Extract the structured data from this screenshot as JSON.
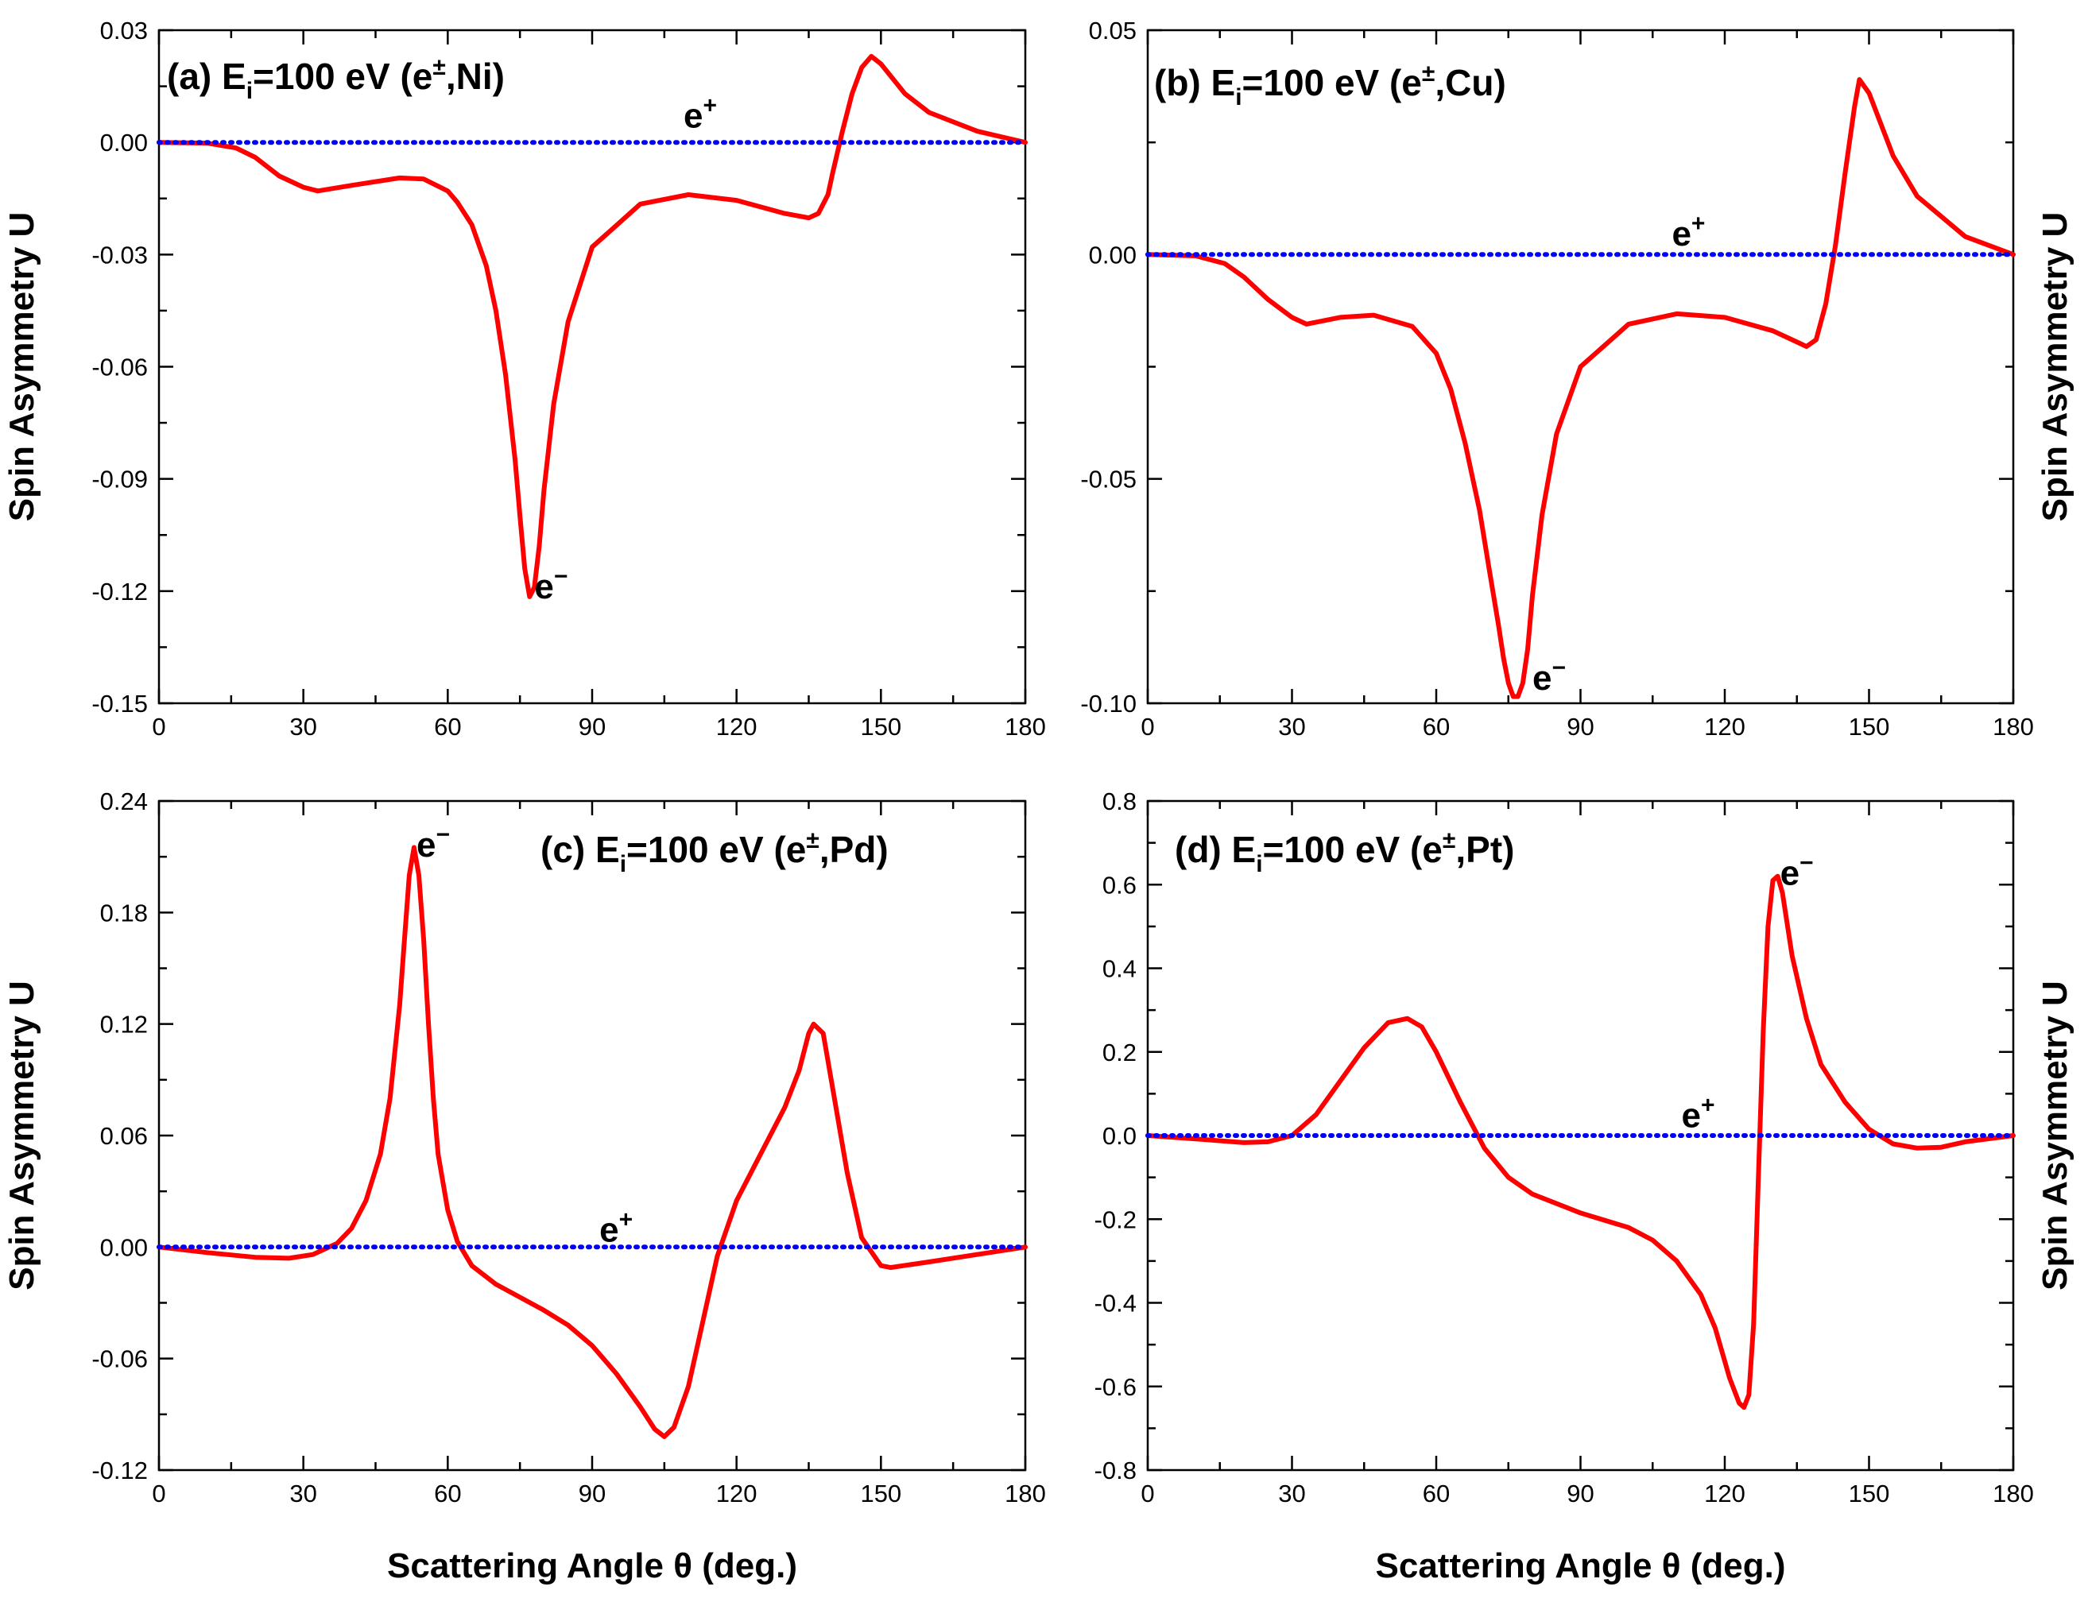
{
  "chart_data": [
    {
      "type": "line",
      "id": "a",
      "title_prefix": "(a) E",
      "title_sub": "i",
      "title_mid": "=100 eV (e",
      "title_sup": "±",
      "title_suffix": ",Ni)",
      "xlabel": "Scattering Angle θ (deg.)",
      "ylabel": "Spin Asymmetry U",
      "xlim": [
        0,
        180
      ],
      "ylim": [
        -0.15,
        0.03
      ],
      "xticks": [
        0,
        30,
        60,
        90,
        120,
        150,
        180
      ],
      "xtick_labels": [
        "0",
        "30",
        "60",
        "90",
        "120",
        "150",
        "180"
      ],
      "yticks": [
        -0.15,
        -0.12,
        -0.09,
        -0.06,
        -0.03,
        0.0,
        0.03
      ],
      "ytick_labels": [
        "-0.15",
        "-0.12",
        "-0.09",
        "-0.06",
        "-0.03",
        "0.00",
        "0.03"
      ],
      "series": [
        {
          "name": "e−",
          "label_base": "e",
          "label_sup": "−",
          "label_at": [
            78,
            -0.122
          ],
          "color": "#ff0000",
          "x": [
            0,
            10,
            16,
            20,
            25,
            30,
            33,
            40,
            50,
            55,
            60,
            62,
            65,
            68,
            70,
            72,
            74,
            75,
            76,
            77,
            78,
            79,
            80,
            82,
            85,
            90,
            100,
            110,
            120,
            130,
            135,
            137,
            139,
            140,
            142,
            144,
            146,
            148,
            150,
            155,
            160,
            170,
            180
          ],
          "y": [
            0,
            -0.0002,
            -0.0015,
            -0.004,
            -0.009,
            -0.012,
            -0.013,
            -0.0115,
            -0.0095,
            -0.0098,
            -0.013,
            -0.016,
            -0.022,
            -0.033,
            -0.045,
            -0.062,
            -0.085,
            -0.1,
            -0.114,
            -0.1215,
            -0.119,
            -0.108,
            -0.093,
            -0.07,
            -0.048,
            -0.028,
            -0.0165,
            -0.014,
            -0.0155,
            -0.019,
            -0.0202,
            -0.019,
            -0.014,
            -0.008,
            0.003,
            0.013,
            0.02,
            0.023,
            0.021,
            0.013,
            0.008,
            0.003,
            0.0
          ]
        },
        {
          "name": "e+",
          "label_base": "e",
          "label_sup": "+",
          "label_at": [
            109,
            0.004
          ],
          "color": "#0000ff",
          "x": [
            0,
            180
          ],
          "y": [
            0,
            0
          ]
        }
      ]
    },
    {
      "type": "line",
      "id": "b",
      "title_prefix": "(b) E",
      "title_sub": "i",
      "title_mid": "=100 eV (e",
      "title_sup": "±",
      "title_suffix": ",Cu)",
      "xlabel": "Scattering Angle θ (deg.)",
      "ylabel": "Spin Asymmetry U",
      "xlim": [
        0,
        180
      ],
      "ylim": [
        -0.1,
        0.05
      ],
      "xticks": [
        0,
        30,
        60,
        90,
        120,
        150,
        180
      ],
      "xtick_labels": [
        "0",
        "30",
        "60",
        "90",
        "120",
        "150",
        "180"
      ],
      "yticks": [
        -0.1,
        -0.05,
        0.0,
        0.05
      ],
      "ytick_labels": [
        "-0.10",
        "-0.05",
        "0.00",
        "0.05"
      ],
      "series": [
        {
          "name": "e−",
          "label_base": "e",
          "label_sup": "−",
          "label_at": [
            80,
            -0.097
          ],
          "color": "#ff0000",
          "x": [
            0,
            10,
            16,
            20,
            25,
            30,
            33,
            40,
            47,
            55,
            60,
            63,
            66,
            69,
            71,
            73,
            74,
            75,
            76,
            77,
            78,
            79,
            80,
            82,
            85,
            90,
            100,
            110,
            120,
            130,
            135,
            137,
            139,
            141,
            143,
            145,
            147,
            148,
            150,
            155,
            160,
            170,
            180
          ],
          "y": [
            0,
            -0.0003,
            -0.002,
            -0.005,
            -0.01,
            -0.014,
            -0.0155,
            -0.014,
            -0.0135,
            -0.016,
            -0.022,
            -0.03,
            -0.042,
            -0.057,
            -0.07,
            -0.083,
            -0.09,
            -0.0955,
            -0.0985,
            -0.0985,
            -0.0955,
            -0.088,
            -0.076,
            -0.058,
            -0.04,
            -0.025,
            -0.0155,
            -0.0132,
            -0.014,
            -0.017,
            -0.0195,
            -0.0205,
            -0.019,
            -0.011,
            0.002,
            0.018,
            0.033,
            0.039,
            0.036,
            0.022,
            0.013,
            0.004,
            0.0
          ]
        },
        {
          "name": "e+",
          "label_base": "e",
          "label_sup": "+",
          "label_at": [
            109,
            0.002
          ],
          "color": "#0000ff",
          "x": [
            0,
            180
          ],
          "y": [
            0,
            0
          ]
        }
      ]
    },
    {
      "type": "line",
      "id": "c",
      "title_prefix": "(c) E",
      "title_sub": "i",
      "title_mid": "=100 eV (e",
      "title_sup": "±",
      "title_suffix": ",Pd)",
      "xlabel": "Scattering Angle θ (deg.)",
      "ylabel": "Spin Asymmetry U",
      "xlim": [
        0,
        180
      ],
      "ylim": [
        -0.12,
        0.24
      ],
      "xticks": [
        0,
        30,
        60,
        90,
        120,
        150,
        180
      ],
      "xtick_labels": [
        "0",
        "30",
        "60",
        "90",
        "120",
        "150",
        "180"
      ],
      "yticks": [
        -0.12,
        -0.06,
        0.0,
        0.06,
        0.12,
        0.18,
        0.24
      ],
      "ytick_labels": [
        "-0.12",
        "-0.06",
        "0.00",
        "0.06",
        "0.12",
        "0.18",
        "0.24"
      ],
      "series": [
        {
          "name": "e−",
          "label_base": "e",
          "label_sup": "−",
          "label_at": [
            53.5,
            0.21
          ],
          "color": "#ff0000",
          "x": [
            0,
            10,
            20,
            27,
            32,
            37,
            40,
            43,
            46,
            48,
            50,
            51,
            52,
            53,
            54,
            55,
            56,
            57,
            58,
            60,
            62,
            65,
            70,
            75,
            80,
            85,
            90,
            95,
            100,
            103,
            105,
            107,
            110,
            113,
            116,
            120,
            125,
            130,
            133,
            135,
            136,
            138,
            140,
            143,
            146,
            150,
            152,
            160,
            170,
            180
          ],
          "y": [
            0,
            -0.003,
            -0.0055,
            -0.006,
            -0.004,
            0.002,
            0.01,
            0.025,
            0.05,
            0.08,
            0.13,
            0.165,
            0.2,
            0.215,
            0.2,
            0.165,
            0.12,
            0.08,
            0.05,
            0.02,
            0.003,
            -0.01,
            -0.02,
            -0.027,
            -0.034,
            -0.042,
            -0.053,
            -0.068,
            -0.086,
            -0.098,
            -0.102,
            -0.097,
            -0.075,
            -0.04,
            -0.005,
            0.025,
            0.05,
            0.075,
            0.095,
            0.115,
            0.12,
            0.115,
            0.085,
            0.04,
            0.005,
            -0.01,
            -0.011,
            -0.008,
            -0.004,
            0.0
          ]
        },
        {
          "name": "e+",
          "label_base": "e",
          "label_sup": "+",
          "label_at": [
            91.5,
            0.003
          ],
          "color": "#0000ff",
          "x": [
            0,
            180
          ],
          "y": [
            0,
            0
          ]
        }
      ]
    },
    {
      "type": "line",
      "id": "d",
      "title_prefix": "(d) E",
      "title_sub": "i",
      "title_mid": "=100 eV (e",
      "title_sup": "±",
      "title_suffix": ",Pt)",
      "xlabel": "Scattering Angle θ (deg.)",
      "ylabel": "Spin Asymmetry U",
      "xlim": [
        0,
        180
      ],
      "ylim": [
        -0.8,
        0.8
      ],
      "xticks": [
        0,
        30,
        60,
        90,
        120,
        150,
        180
      ],
      "xtick_labels": [
        "0",
        "30",
        "60",
        "90",
        "120",
        "150",
        "180"
      ],
      "yticks": [
        -0.8,
        -0.6,
        -0.4,
        -0.2,
        0.0,
        0.2,
        0.4,
        0.6,
        0.8
      ],
      "ytick_labels": [
        "-0.8",
        "-0.6",
        "-0.4",
        "-0.2",
        "0.0",
        "0.2",
        "0.4",
        "0.6",
        "0.8"
      ],
      "series": [
        {
          "name": "e−",
          "label_base": "e",
          "label_sup": "−",
          "label_at": [
            131.5,
            0.6
          ],
          "color": "#ff0000",
          "x": [
            0,
            10,
            20,
            25,
            30,
            35,
            40,
            45,
            50,
            54,
            57,
            60,
            65,
            70,
            75,
            80,
            90,
            100,
            105,
            110,
            115,
            118,
            121,
            123,
            124,
            125,
            126,
            127,
            128,
            129,
            130,
            131,
            132,
            134,
            137,
            140,
            145,
            150,
            155,
            160,
            165,
            170,
            180
          ],
          "y": [
            0,
            -0.008,
            -0.017,
            -0.015,
            0.0,
            0.05,
            0.13,
            0.21,
            0.27,
            0.28,
            0.26,
            0.2,
            0.08,
            -0.03,
            -0.1,
            -0.14,
            -0.185,
            -0.22,
            -0.25,
            -0.3,
            -0.38,
            -0.46,
            -0.58,
            -0.64,
            -0.65,
            -0.62,
            -0.45,
            -0.1,
            0.25,
            0.5,
            0.61,
            0.62,
            0.58,
            0.43,
            0.28,
            0.17,
            0.08,
            0.015,
            -0.02,
            -0.03,
            -0.028,
            -0.015,
            0.0
          ]
        },
        {
          "name": "e+",
          "label_base": "e",
          "label_sup": "+",
          "label_at": [
            111,
            0.02
          ],
          "color": "#0000ff",
          "x": [
            0,
            180
          ],
          "y": [
            0,
            0
          ]
        }
      ]
    }
  ]
}
